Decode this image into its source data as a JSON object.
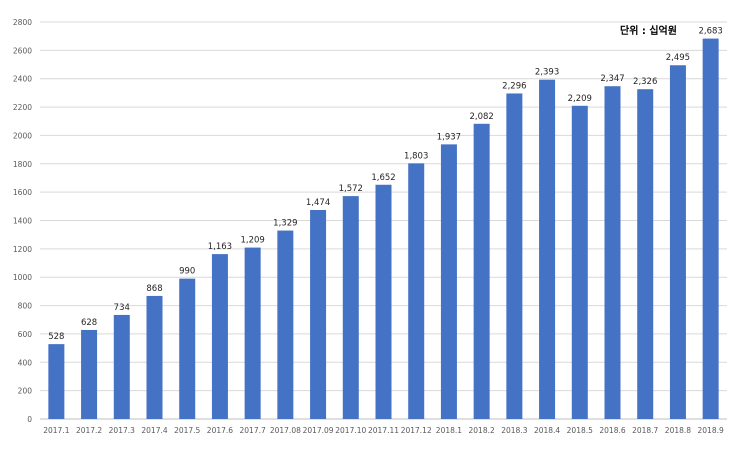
{
  "chart_data": {
    "type": "bar",
    "unit_label": "단위 : 십억원",
    "categories": [
      "2017.1",
      "2017.2",
      "2017.3",
      "2017.4",
      "2017.5",
      "2017.6",
      "2017.7",
      "2017.08",
      "2017.09",
      "2017.10",
      "2017.11",
      "2017.12",
      "2018.1",
      "2018.2",
      "2018.3",
      "2018.4",
      "2018.5",
      "2018.6",
      "2018.7",
      "2018.8",
      "2018.9"
    ],
    "values": [
      528,
      628,
      734,
      868,
      990,
      1163,
      1209,
      1329,
      1474,
      1572,
      1652,
      1803,
      1937,
      2082,
      2296,
      2393,
      2209,
      2347,
      2326,
      2495,
      2683
    ],
    "value_labels": [
      "528",
      "628",
      "734",
      "868",
      "990",
      "1,163",
      "1,209",
      "1,329",
      "1,474",
      "1,572",
      "1,652",
      "1,803",
      "1,937",
      "2,082",
      "2,296",
      "2,393",
      "2,209",
      "2,347",
      "2,326",
      "2,495",
      "2,683"
    ],
    "ylim": [
      0,
      2800
    ],
    "yticks": [
      0,
      200,
      400,
      600,
      800,
      1000,
      1200,
      1400,
      1600,
      1800,
      2000,
      2200,
      2400,
      2600,
      2800
    ],
    "grid": true,
    "bar_color": "#4472C4",
    "grid_color": "#D9D9D9"
  }
}
